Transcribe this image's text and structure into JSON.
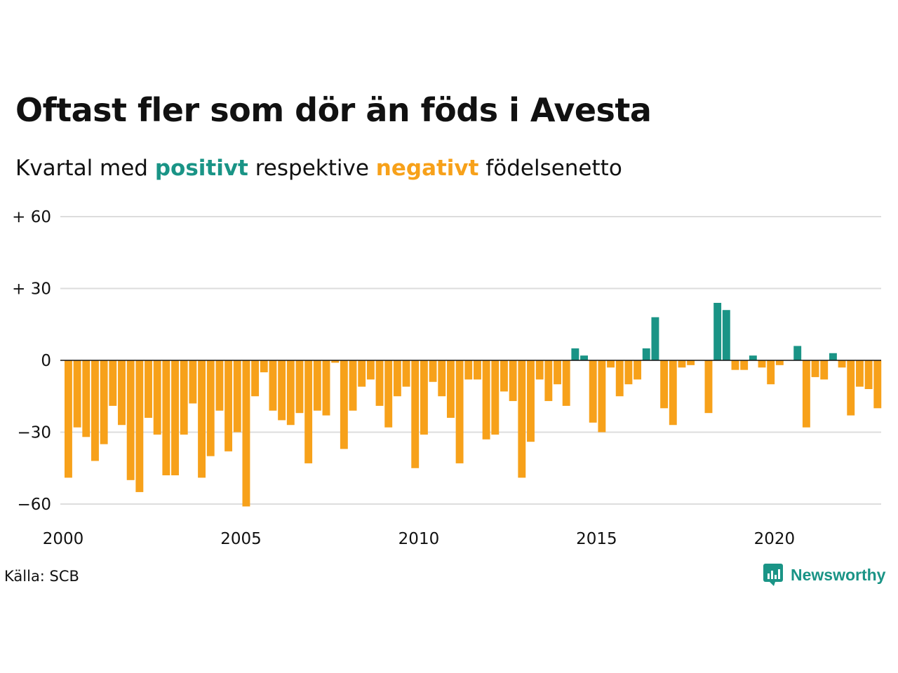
{
  "header": {
    "title": "Oftast fler som dör än föds i Avesta",
    "subtitle_prefix": "Kvartal med ",
    "subtitle_pos": "positivt",
    "subtitle_mid": " respektive ",
    "subtitle_neg": "negativt",
    "subtitle_suffix": " födelsenetto"
  },
  "footer": {
    "source": "Källa: SCB",
    "brand": "Newsworthy"
  },
  "colors": {
    "positive": "#1a9486",
    "negative": "#f7a11a",
    "grid": "#dddddd",
    "zero": "#111111"
  },
  "chart_data": {
    "type": "bar",
    "ylim": [
      -60,
      60
    ],
    "xlim": [
      2000,
      2023
    ],
    "grid": true,
    "y_ticks": [
      60,
      30,
      0,
      -30,
      -60
    ],
    "y_tick_labels": [
      "+ 60",
      "+ 30",
      "0",
      "−30",
      "−60"
    ],
    "x_ticks": [
      2000,
      2005,
      2010,
      2015,
      2020
    ],
    "x_tick_labels": [
      "2000",
      "2005",
      "2010",
      "2015",
      "2020"
    ],
    "categories": [
      "2000K1",
      "2000K2",
      "2000K3",
      "2000K4",
      "2001K1",
      "2001K2",
      "2001K3",
      "2001K4",
      "2002K1",
      "2002K2",
      "2002K3",
      "2002K4",
      "2003K1",
      "2003K2",
      "2003K3",
      "2003K4",
      "2004K1",
      "2004K2",
      "2004K3",
      "2004K4",
      "2005K1",
      "2005K2",
      "2005K3",
      "2005K4",
      "2006K1",
      "2006K2",
      "2006K3",
      "2006K4",
      "2007K1",
      "2007K2",
      "2007K3",
      "2007K4",
      "2008K1",
      "2008K2",
      "2008K3",
      "2008K4",
      "2009K1",
      "2009K2",
      "2009K3",
      "2009K4",
      "2010K1",
      "2010K2",
      "2010K3",
      "2010K4",
      "2011K1",
      "2011K2",
      "2011K3",
      "2011K4",
      "2012K1",
      "2012K2",
      "2012K3",
      "2012K4",
      "2013K1",
      "2013K2",
      "2013K3",
      "2013K4",
      "2014K1",
      "2014K2",
      "2014K3",
      "2014K4",
      "2015K1",
      "2015K2",
      "2015K3",
      "2015K4",
      "2016K1",
      "2016K2",
      "2016K3",
      "2016K4",
      "2017K1",
      "2017K2",
      "2017K3",
      "2017K4",
      "2018K1",
      "2018K2",
      "2018K3",
      "2018K4",
      "2019K1",
      "2019K2",
      "2019K3",
      "2019K4",
      "2020K1",
      "2020K2",
      "2020K3",
      "2020K4",
      "2021K1",
      "2021K2",
      "2021K3",
      "2021K4",
      "2022K1",
      "2022K2",
      "2022K3",
      "2022K4"
    ],
    "values": [
      -49,
      -28,
      -32,
      -42,
      -35,
      -19,
      -27,
      -50,
      -55,
      -24,
      -31,
      -48,
      -48,
      -31,
      -18,
      -49,
      -40,
      -21,
      -38,
      -30,
      -61,
      -15,
      -5,
      -21,
      -25,
      -27,
      -22,
      -43,
      -21,
      -23,
      -1,
      -37,
      -21,
      -11,
      -8,
      -19,
      -28,
      -15,
      -11,
      -45,
      -31,
      -9,
      -15,
      -24,
      -43,
      -8,
      -8,
      -33,
      -31,
      -13,
      -17,
      -49,
      -34,
      -8,
      -17,
      -10,
      -19,
      5,
      2,
      -26,
      -30,
      -3,
      -15,
      -10,
      -8,
      5,
      18,
      -20,
      -27,
      -3,
      -2,
      0,
      -22,
      24,
      21,
      -4,
      -4,
      2,
      -3,
      -10,
      -2,
      0,
      6,
      -28,
      -7,
      -8,
      3,
      -3,
      -23,
      -11,
      -12,
      -20
    ]
  }
}
